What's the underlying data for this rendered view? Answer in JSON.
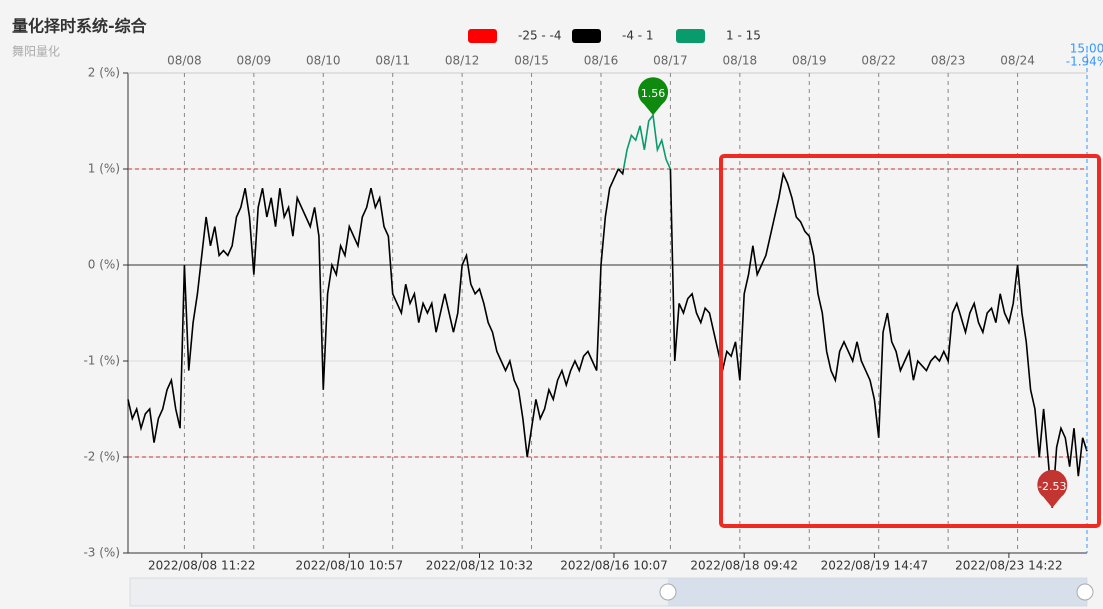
{
  "chart_data": {
    "type": "line",
    "title": "量化择时系统-综合",
    "subtitle": "舞阳量化",
    "pieces": [
      {
        "min": -25,
        "max": -4,
        "label": "-25 - -4",
        "color": "#ff0000"
      },
      {
        "min": -4,
        "max": 1,
        "label": "-4 - 1",
        "color": "#000000"
      },
      {
        "min": 1,
        "max": 15,
        "label": "1 - 15",
        "color": "#0a9b6c"
      }
    ],
    "ylim": [
      -3,
      2
    ],
    "yticks": [
      {
        "value": 2,
        "label": "2 (%)"
      },
      {
        "value": 1,
        "label": "1 (%)"
      },
      {
        "value": 0,
        "label": "0 (%)"
      },
      {
        "value": -1,
        "label": "-1 (%)"
      },
      {
        "value": -2,
        "label": "-2 (%)"
      },
      {
        "value": -3,
        "label": "-3 (%)"
      }
    ],
    "xlim": [
      0,
      221
    ],
    "xticks_top": [
      {
        "value": 13,
        "label": "08/08"
      },
      {
        "value": 29,
        "label": "08/09"
      },
      {
        "value": 45,
        "label": "08/10"
      },
      {
        "value": 61,
        "label": "08/11"
      },
      {
        "value": 77,
        "label": "08/12"
      },
      {
        "value": 93,
        "label": "08/15"
      },
      {
        "value": 109,
        "label": "08/16"
      },
      {
        "value": 125,
        "label": "08/17"
      },
      {
        "value": 141,
        "label": "08/18"
      },
      {
        "value": 157,
        "label": "08/19"
      },
      {
        "value": 173,
        "label": "08/22"
      },
      {
        "value": 189,
        "label": "08/23"
      },
      {
        "value": 205,
        "label": "08/24"
      }
    ],
    "xticks": [
      {
        "value": 17,
        "label": "2022/08/08 11:22"
      },
      {
        "value": 51,
        "label": "2022/08/10 10:57"
      },
      {
        "value": 81,
        "label": "2022/08/12 10:32"
      },
      {
        "value": 112,
        "label": "2022/08/16 10:07"
      },
      {
        "value": 142,
        "label": "2022/08/18 09:42"
      },
      {
        "value": 172,
        "label": "2022/08/19 14:47"
      },
      {
        "value": 203,
        "label": "2022/08/23 14:22"
      }
    ],
    "mark_lines": [
      1,
      -2
    ],
    "mark_points": [
      {
        "x": 121,
        "value": 1.56,
        "color": "#0e8a0e"
      },
      {
        "x": 213,
        "value": -2.53,
        "color": "#c23531"
      }
    ],
    "cursor": {
      "x": 221,
      "label": "15:00",
      "value_label": "-1.94%"
    },
    "x": [
      0,
      1,
      2,
      3,
      4,
      5,
      6,
      7,
      8,
      9,
      10,
      11,
      12,
      13,
      14,
      15,
      16,
      17,
      18,
      19,
      20,
      21,
      22,
      23,
      24,
      25,
      26,
      27,
      28,
      29,
      30,
      31,
      32,
      33,
      34,
      35,
      36,
      37,
      38,
      39,
      40,
      41,
      42,
      43,
      44,
      45,
      46,
      47,
      48,
      49,
      50,
      51,
      52,
      53,
      54,
      55,
      56,
      57,
      58,
      59,
      60,
      61,
      62,
      63,
      64,
      65,
      66,
      67,
      68,
      69,
      70,
      71,
      72,
      73,
      74,
      75,
      76,
      77,
      78,
      79,
      80,
      81,
      82,
      83,
      84,
      85,
      86,
      87,
      88,
      89,
      90,
      91,
      92,
      93,
      94,
      95,
      96,
      97,
      98,
      99,
      100,
      101,
      102,
      103,
      104,
      105,
      106,
      107,
      108,
      109,
      110,
      111,
      112,
      113,
      114,
      115,
      116,
      117,
      118,
      119,
      120,
      121,
      122,
      123,
      124,
      125,
      126,
      127,
      128,
      129,
      130,
      131,
      132,
      133,
      134,
      135,
      136,
      137,
      138,
      139,
      140,
      141,
      142,
      143,
      144,
      145,
      146,
      147,
      148,
      149,
      150,
      151,
      152,
      153,
      154,
      155,
      156,
      157,
      158,
      159,
      160,
      161,
      162,
      163,
      164,
      165,
      166,
      167,
      168,
      169,
      170,
      171,
      172,
      173,
      174,
      175,
      176,
      177,
      178,
      179,
      180,
      181,
      182,
      183,
      184,
      185,
      186,
      187,
      188,
      189,
      190,
      191,
      192,
      193,
      194,
      195,
      196,
      197,
      198,
      199,
      200,
      201,
      202,
      203,
      204,
      205,
      206,
      207,
      208,
      209,
      210,
      211,
      212,
      213,
      214,
      215,
      216,
      217,
      218,
      219,
      220,
      221
    ],
    "values": [
      -1.4,
      -1.6,
      -1.5,
      -1.7,
      -1.55,
      -1.5,
      -1.85,
      -1.6,
      -1.5,
      -1.3,
      -1.2,
      -1.5,
      -1.7,
      0.0,
      -1.1,
      -0.6,
      -0.3,
      0.1,
      0.5,
      0.2,
      0.4,
      0.1,
      0.15,
      0.1,
      0.2,
      0.5,
      0.6,
      0.8,
      0.5,
      -0.1,
      0.6,
      0.8,
      0.5,
      0.7,
      0.4,
      0.8,
      0.5,
      0.6,
      0.3,
      0.7,
      0.6,
      0.5,
      0.4,
      0.6,
      0.3,
      -1.3,
      -0.3,
      0.0,
      -0.1,
      0.2,
      0.1,
      0.4,
      0.3,
      0.2,
      0.5,
      0.6,
      0.8,
      0.6,
      0.7,
      0.4,
      0.3,
      -0.3,
      -0.4,
      -0.5,
      -0.2,
      -0.4,
      -0.3,
      -0.6,
      -0.4,
      -0.5,
      -0.4,
      -0.7,
      -0.5,
      -0.3,
      -0.5,
      -0.7,
      -0.5,
      0.0,
      0.1,
      -0.2,
      -0.3,
      -0.25,
      -0.4,
      -0.6,
      -0.7,
      -0.9,
      -1.0,
      -1.1,
      -1.0,
      -1.2,
      -1.3,
      -1.6,
      -2.0,
      -1.7,
      -1.4,
      -1.6,
      -1.5,
      -1.3,
      -1.4,
      -1.2,
      -1.1,
      -1.25,
      -1.1,
      -1.0,
      -1.1,
      -0.95,
      -0.9,
      -1.0,
      -1.1,
      0.0,
      0.5,
      0.8,
      0.9,
      1.0,
      0.95,
      1.2,
      1.35,
      1.3,
      1.45,
      1.2,
      1.5,
      1.56,
      1.2,
      1.3,
      1.1,
      1.0,
      -1.0,
      -0.4,
      -0.5,
      -0.35,
      -0.3,
      -0.5,
      -0.6,
      -0.45,
      -0.5,
      -0.7,
      -0.9,
      -1.1,
      -0.9,
      -0.95,
      -0.8,
      -1.2,
      -0.3,
      -0.1,
      0.2,
      -0.1,
      0.0,
      0.1,
      0.3,
      0.5,
      0.7,
      0.95,
      0.85,
      0.7,
      0.5,
      0.45,
      0.35,
      0.3,
      0.1,
      -0.3,
      -0.5,
      -0.9,
      -1.1,
      -1.2,
      -0.9,
      -0.8,
      -0.9,
      -1.0,
      -0.8,
      -1.0,
      -1.1,
      -1.2,
      -1.4,
      -1.8,
      -0.7,
      -0.5,
      -0.8,
      -0.9,
      -1.1,
      -1.0,
      -0.9,
      -1.2,
      -1.0,
      -1.05,
      -1.1,
      -1.0,
      -0.95,
      -1.0,
      -0.9,
      -1.0,
      -0.5,
      -0.4,
      -0.55,
      -0.7,
      -0.5,
      -0.4,
      -0.6,
      -0.7,
      -0.5,
      -0.45,
      -0.6,
      -0.3,
      -0.5,
      -0.6,
      -0.4,
      0.0,
      -0.5,
      -0.8,
      -1.3,
      -1.5,
      -2.0,
      -1.5,
      -2.0,
      -2.53,
      -1.9,
      -1.7,
      -1.8,
      -2.1,
      -1.7,
      -2.2,
      -1.8,
      -1.94
    ]
  }
}
